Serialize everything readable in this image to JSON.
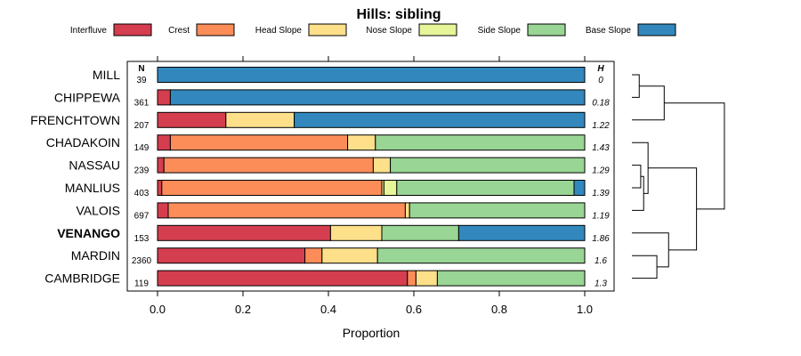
{
  "chart_data": {
    "type": "bar",
    "orientation": "horizontal-stacked",
    "title": "Hills: sibling",
    "xlabel": "Proportion",
    "ylabel": "",
    "xlim": [
      0,
      1
    ],
    "x_ticks": [
      "0.0",
      "0.2",
      "0.4",
      "0.6",
      "0.8",
      "1.0"
    ],
    "x_tick_values": [
      0,
      0.2,
      0.4,
      0.6,
      0.8,
      1.0
    ],
    "legend_position": "top",
    "n_header": "N",
    "h_header": "H",
    "series": [
      {
        "name": "Interfluve",
        "color": "#d53e4f"
      },
      {
        "name": "Crest",
        "color": "#fc8d59"
      },
      {
        "name": "Head Slope",
        "color": "#fee08b"
      },
      {
        "name": "Nose Slope",
        "color": "#e6f598"
      },
      {
        "name": "Side Slope",
        "color": "#99d594"
      },
      {
        "name": "Base Slope",
        "color": "#3288bd"
      }
    ],
    "categories": [
      "MILL",
      "CHIPPEWA",
      "FRENCHTOWN",
      "CHADAKOIN",
      "NASSAU",
      "MANLIUS",
      "VALOIS",
      "VENANGO",
      "MARDIN",
      "CAMBRIDGE"
    ],
    "highlighted": "VENANGO",
    "n": [
      "39",
      "361",
      "207",
      "149",
      "239",
      "403",
      "697",
      "153",
      "2360",
      "119"
    ],
    "h": [
      "0",
      "0.18",
      "1.22",
      "1.43",
      "1.29",
      "1.39",
      "1.19",
      "1.86",
      "1.6",
      "1.3"
    ],
    "values": [
      [
        0.0,
        0.0,
        0.0,
        0.0,
        0.0,
        1.0
      ],
      [
        0.03,
        0.0,
        0.0,
        0.0,
        0.0,
        0.97
      ],
      [
        0.16,
        0.0,
        0.16,
        0.0,
        0.0,
        0.68
      ],
      [
        0.03,
        0.415,
        0.065,
        0.0,
        0.49,
        0.0
      ],
      [
        0.015,
        0.49,
        0.04,
        0.0,
        0.455,
        0.0
      ],
      [
        0.01,
        0.515,
        0.005,
        0.03,
        0.415,
        0.025
      ],
      [
        0.025,
        0.555,
        0.01,
        0.0,
        0.41,
        0.0
      ],
      [
        0.405,
        0.0,
        0.12,
        0.0,
        0.18,
        0.295
      ],
      [
        0.345,
        0.04,
        0.13,
        0.0,
        0.485,
        0.0
      ],
      [
        0.585,
        0.02,
        0.05,
        0.0,
        0.345,
        0.0
      ]
    ],
    "dendrogram": {
      "leaf_order": [
        "MILL",
        "CHIPPEWA",
        "FRENCHTOWN",
        "CHADAKOIN",
        "NASSAU",
        "MANLIUS",
        "VALOIS",
        "VENANGO",
        "MARDIN",
        "CAMBRIDGE"
      ],
      "merges": [
        [
          0,
          1,
          0.05
        ],
        [
          10,
          2,
          0.22
        ],
        [
          4,
          5,
          0.06
        ],
        [
          12,
          6,
          0.08
        ],
        [
          3,
          13,
          0.11
        ],
        [
          8,
          9,
          0.17
        ],
        [
          7,
          15,
          0.25
        ],
        [
          14,
          16,
          0.44
        ],
        [
          11,
          17,
          0.63
        ]
      ]
    }
  }
}
